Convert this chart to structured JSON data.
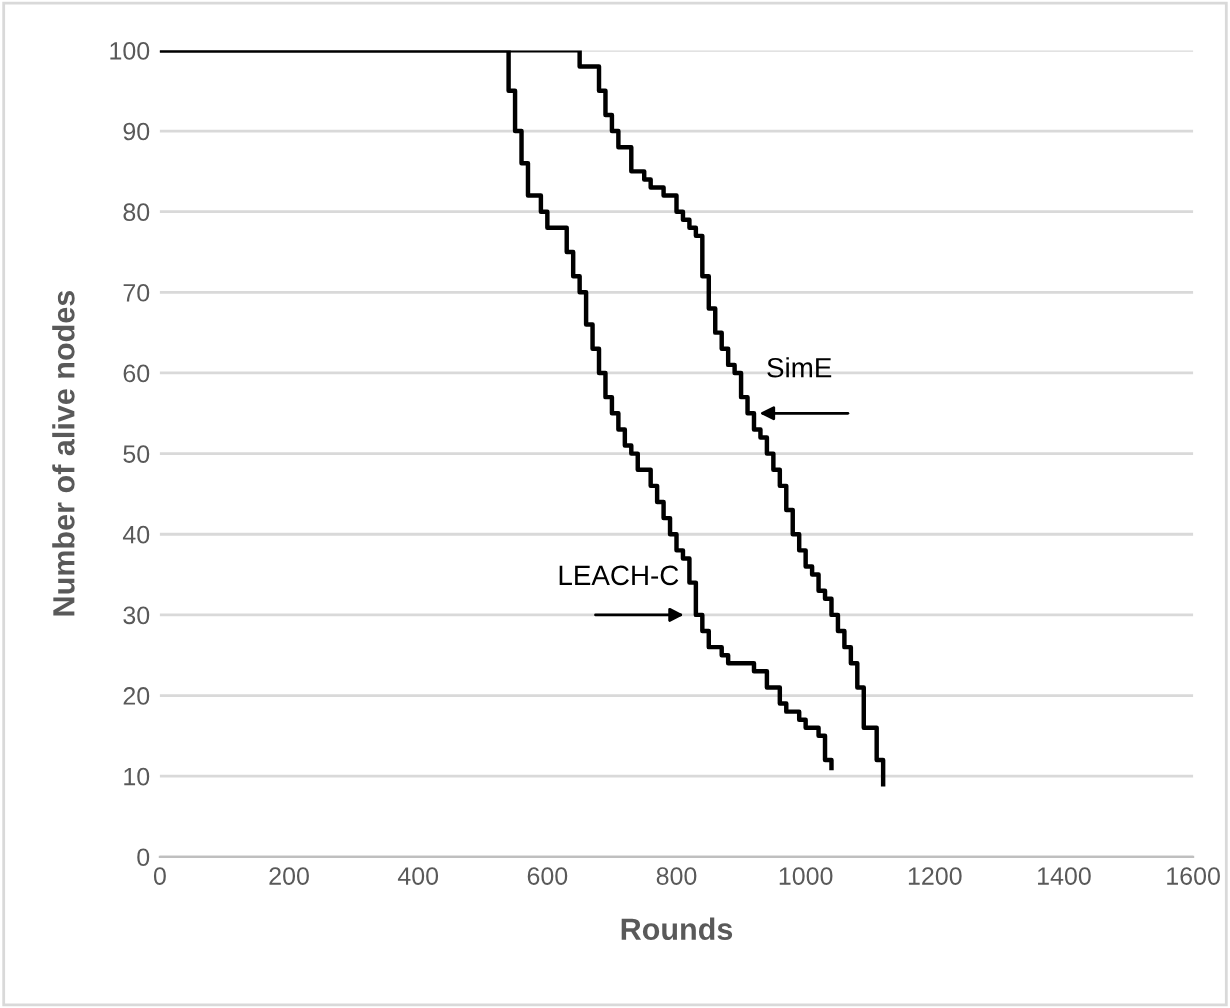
{
  "chart_data": {
    "type": "step",
    "xlabel": "Rounds",
    "ylabel": "Number of alive nodes",
    "xlim": [
      0,
      1600
    ],
    "ylim": [
      0,
      100
    ],
    "xticks": [
      0,
      200,
      400,
      600,
      800,
      1000,
      1200,
      1400,
      1600
    ],
    "yticks": [
      0,
      10,
      20,
      30,
      40,
      50,
      60,
      70,
      80,
      90,
      100
    ],
    "grid": "y",
    "legend": false,
    "marker": "none",
    "line_style": "solid",
    "series": [
      {
        "color": "#000000",
        "x": [
          0,
          520,
          540,
          550,
          560,
          570,
          590,
          600,
          630,
          640,
          650,
          660,
          670,
          680,
          690,
          700,
          710,
          720,
          730,
          740,
          760,
          770,
          780,
          790,
          800,
          810,
          820,
          830,
          840,
          850,
          870,
          880,
          900,
          920,
          940,
          960,
          970,
          990,
          1000,
          1020,
          1030,
          1040
        ],
        "values": [
          100,
          100,
          95,
          90,
          86,
          82,
          80,
          78,
          75,
          72,
          70,
          66,
          63,
          60,
          57,
          55,
          53,
          51,
          50,
          48,
          46,
          44,
          42,
          40,
          38,
          37,
          34,
          30,
          28,
          26,
          25,
          24,
          24,
          23,
          21,
          19,
          18,
          17,
          16,
          15,
          12,
          11
        ]
      },
      {
        "color": "#000000",
        "x": [
          0,
          640,
          650,
          660,
          680,
          690,
          700,
          710,
          730,
          750,
          760,
          780,
          800,
          810,
          820,
          830,
          840,
          850,
          860,
          870,
          880,
          890,
          900,
          910,
          920,
          930,
          940,
          950,
          960,
          970,
          980,
          990,
          1000,
          1010,
          1020,
          1030,
          1040,
          1050,
          1060,
          1070,
          1080,
          1090,
          1100,
          1110,
          1120
        ],
        "values": [
          100,
          100,
          98,
          98,
          95,
          92,
          90,
          88,
          85,
          84,
          83,
          82,
          80,
          79,
          78,
          77,
          72,
          68,
          65,
          63,
          61,
          60,
          57,
          55,
          53,
          52,
          50,
          48,
          46,
          43,
          40,
          38,
          36,
          35,
          33,
          32,
          30,
          28,
          26,
          24,
          21,
          16,
          16,
          12,
          9
        ]
      }
    ],
    "annotations": [
      {
        "text": "SimE",
        "x": 920,
        "y": 55
      },
      {
        "text": "LEACH-C",
        "x": 820,
        "y": 30
      }
    ]
  }
}
